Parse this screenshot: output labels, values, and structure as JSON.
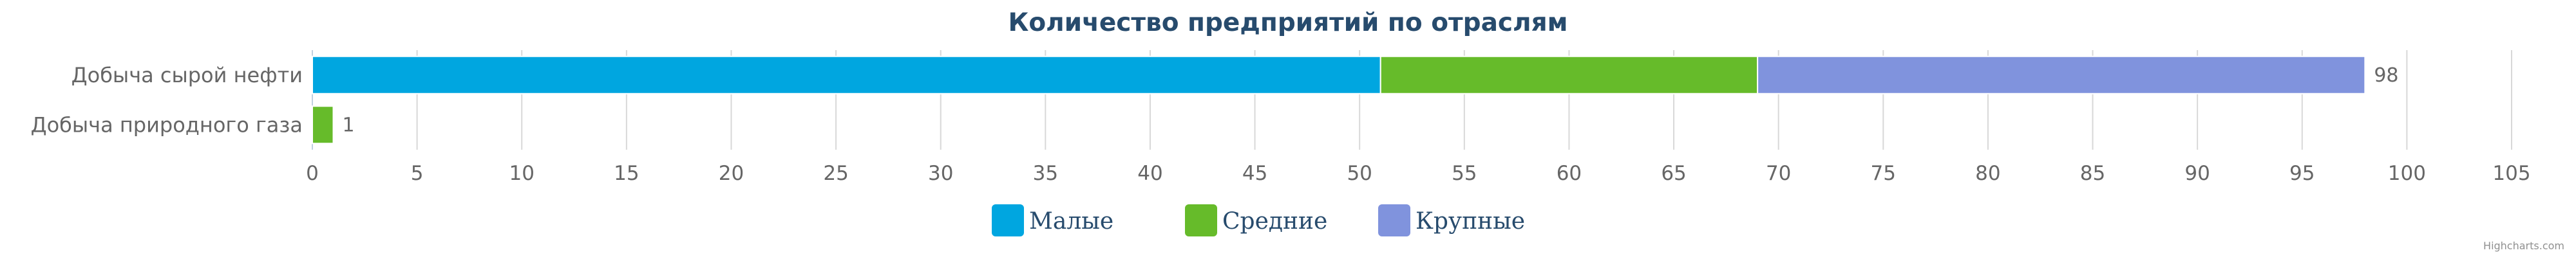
{
  "chart_data": {
    "type": "bar",
    "orientation": "horizontal",
    "stacked": true,
    "title": "Количество предприятий по отраслям",
    "categories": [
      "Добыча сырой нефти",
      "Добыча природного газа"
    ],
    "series": [
      {
        "name": "Малые",
        "color": "#00a6e0",
        "values": [
          51,
          0
        ]
      },
      {
        "name": "Средние",
        "color": "#66bb2a",
        "values": [
          18,
          1
        ]
      },
      {
        "name": "Крупные",
        "color": "#8093dd",
        "values": [
          29,
          0
        ]
      }
    ],
    "totals": [
      "98",
      "1"
    ],
    "xlim": [
      0,
      105
    ],
    "x_ticks": [
      "0",
      "5",
      "10",
      "15",
      "20",
      "25",
      "30",
      "35",
      "40",
      "45",
      "50",
      "55",
      "60",
      "65",
      "70",
      "75",
      "80",
      "85",
      "90",
      "95",
      "100",
      "105"
    ],
    "grid": true,
    "legend_position": "bottom-center"
  },
  "credits": "Highcharts.com"
}
